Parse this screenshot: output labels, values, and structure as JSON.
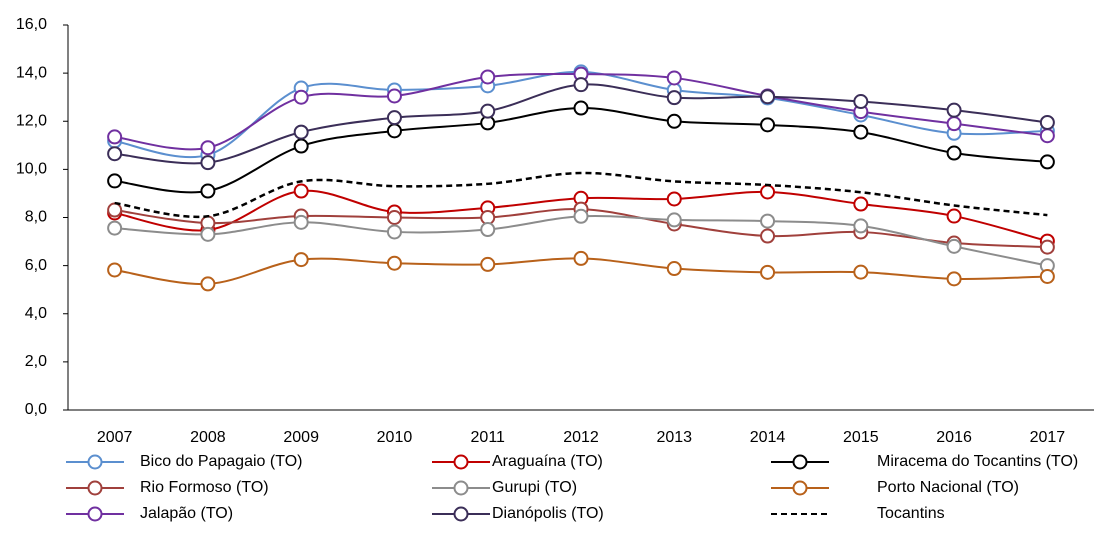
{
  "chart_data": {
    "type": "line",
    "categories": [
      "2007",
      "2008",
      "2009",
      "2010",
      "2011",
      "2012",
      "2013",
      "2014",
      "2015",
      "2016",
      "2017"
    ],
    "ylim": [
      0,
      16
    ],
    "yticks": [
      {
        "value": 0,
        "label": "0,0"
      },
      {
        "value": 2,
        "label": "2,0"
      },
      {
        "value": 4,
        "label": "4,0"
      },
      {
        "value": 6,
        "label": "6,0"
      },
      {
        "value": 8,
        "label": "8,0"
      },
      {
        "value": 10,
        "label": "10,0"
      },
      {
        "value": 12,
        "label": "12,0"
      },
      {
        "value": 14,
        "label": "14,0"
      },
      {
        "value": 16,
        "label": "16,0"
      }
    ],
    "grid": false,
    "smooth": true,
    "series": [
      {
        "name": "Bico do Papagaio (TO)",
        "color": "#5b8fcf",
        "marker": "circle",
        "values": [
          11.18,
          10.6,
          13.38,
          13.3,
          13.47,
          14.05,
          13.3,
          12.97,
          12.26,
          11.5,
          11.6
        ]
      },
      {
        "name": "Araguaína (TO)",
        "color": "#c00000",
        "marker": "circle",
        "values": [
          8.19,
          7.48,
          9.1,
          8.23,
          8.4,
          8.8,
          8.77,
          9.06,
          8.56,
          8.06,
          7.02
        ]
      },
      {
        "name": "Miracema do Tocantins (TO)",
        "color": "#000000",
        "marker": "circle",
        "values": [
          9.52,
          9.1,
          10.97,
          11.6,
          11.93,
          12.55,
          12.0,
          11.85,
          11.55,
          10.68,
          10.31
        ]
      },
      {
        "name": "Rio Formoso (TO)",
        "color": "#a0403c",
        "marker": "circle",
        "values": [
          8.31,
          7.77,
          8.06,
          8.0,
          8.0,
          8.35,
          7.73,
          7.23,
          7.4,
          6.94,
          6.77
        ]
      },
      {
        "name": "Gurupi (TO)",
        "color": "#8c8c8c",
        "marker": "circle",
        "values": [
          7.56,
          7.3,
          7.8,
          7.4,
          7.5,
          8.05,
          7.9,
          7.85,
          7.65,
          6.8,
          6.0
        ]
      },
      {
        "name": "Porto Nacional (TO)",
        "color": "#b8611a",
        "marker": "circle",
        "values": [
          5.82,
          5.24,
          6.25,
          6.1,
          6.05,
          6.3,
          5.88,
          5.72,
          5.73,
          5.45,
          5.55
        ]
      },
      {
        "name": "Jalapão (TO)",
        "color": "#7030a0",
        "marker": "circle",
        "values": [
          11.35,
          10.9,
          13.0,
          13.05,
          13.84,
          13.96,
          13.8,
          13.05,
          12.4,
          11.9,
          11.4
        ]
      },
      {
        "name": "Dianópolis (TO)",
        "color": "#3b2e58",
        "marker": "circle",
        "values": [
          10.65,
          10.28,
          11.55,
          12.15,
          12.42,
          13.52,
          12.98,
          13.02,
          12.82,
          12.46,
          11.95
        ]
      },
      {
        "name": "Tocantins",
        "color": "#000000",
        "marker": "none",
        "dashed": true,
        "values": [
          8.6,
          8.05,
          9.5,
          9.3,
          9.4,
          9.85,
          9.5,
          9.35,
          9.05,
          8.5,
          8.1
        ]
      }
    ]
  }
}
